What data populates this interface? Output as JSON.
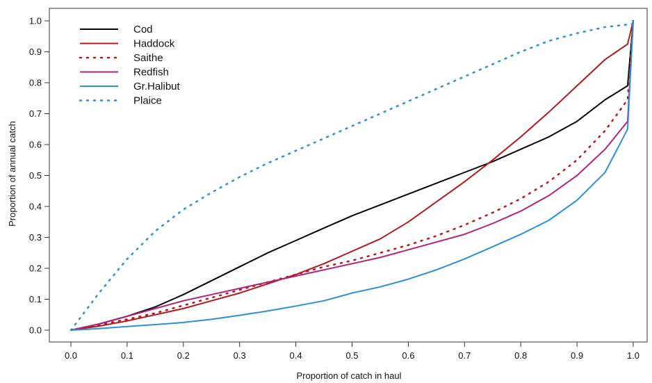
{
  "chart_data": {
    "type": "line",
    "xlabel": "Proportion of catch in haul",
    "ylabel": "Proportion of annual catch",
    "xlim": [
      0,
      1
    ],
    "ylim": [
      0,
      1
    ],
    "xticks": [
      "0.0",
      "0.1",
      "0.2",
      "0.3",
      "0.4",
      "0.5",
      "0.6",
      "0.7",
      "0.8",
      "0.9",
      "1.0"
    ],
    "yticks": [
      "0.0",
      "0.1",
      "0.2",
      "0.3",
      "0.4",
      "0.5",
      "0.6",
      "0.7",
      "0.8",
      "0.9",
      "1.0"
    ],
    "grid": false,
    "legend_position": "top-left",
    "series": [
      {
        "name": "Cod",
        "color": "#000000",
        "style": "solid",
        "x": [
          0.0,
          0.05,
          0.1,
          0.15,
          0.2,
          0.25,
          0.3,
          0.35,
          0.4,
          0.45,
          0.5,
          0.55,
          0.6,
          0.65,
          0.7,
          0.75,
          0.8,
          0.85,
          0.9,
          0.95,
          0.99,
          1.0
        ],
        "y": [
          0.0,
          0.02,
          0.045,
          0.075,
          0.115,
          0.16,
          0.205,
          0.25,
          0.29,
          0.33,
          0.37,
          0.405,
          0.44,
          0.475,
          0.51,
          0.545,
          0.585,
          0.625,
          0.675,
          0.745,
          0.79,
          1.0
        ]
      },
      {
        "name": "Haddock",
        "color": "#b01a1a",
        "style": "solid",
        "x": [
          0.0,
          0.05,
          0.1,
          0.15,
          0.2,
          0.25,
          0.3,
          0.35,
          0.4,
          0.45,
          0.5,
          0.55,
          0.6,
          0.65,
          0.7,
          0.75,
          0.8,
          0.85,
          0.9,
          0.95,
          0.99,
          1.0
        ],
        "y": [
          0.0,
          0.013,
          0.03,
          0.05,
          0.07,
          0.095,
          0.12,
          0.15,
          0.18,
          0.215,
          0.255,
          0.295,
          0.35,
          0.415,
          0.48,
          0.55,
          0.625,
          0.705,
          0.79,
          0.875,
          0.925,
          1.0
        ]
      },
      {
        "name": "Saithe",
        "color": "#b01a1a",
        "style": "dotted",
        "x": [
          0.0,
          0.05,
          0.1,
          0.15,
          0.2,
          0.25,
          0.3,
          0.35,
          0.4,
          0.45,
          0.5,
          0.55,
          0.6,
          0.65,
          0.7,
          0.75,
          0.8,
          0.85,
          0.9,
          0.95,
          0.99,
          1.0
        ],
        "y": [
          0.0,
          0.017,
          0.035,
          0.055,
          0.08,
          0.105,
          0.13,
          0.155,
          0.18,
          0.205,
          0.225,
          0.25,
          0.275,
          0.305,
          0.34,
          0.38,
          0.425,
          0.48,
          0.55,
          0.645,
          0.745,
          1.0
        ]
      },
      {
        "name": "Redfish",
        "color": "#b0237a",
        "style": "solid",
        "x": [
          0.0,
          0.05,
          0.1,
          0.15,
          0.2,
          0.25,
          0.3,
          0.35,
          0.4,
          0.45,
          0.5,
          0.55,
          0.6,
          0.65,
          0.7,
          0.75,
          0.8,
          0.85,
          0.9,
          0.95,
          0.99,
          1.0
        ],
        "y": [
          0.0,
          0.02,
          0.045,
          0.07,
          0.095,
          0.115,
          0.135,
          0.155,
          0.175,
          0.195,
          0.215,
          0.235,
          0.26,
          0.285,
          0.31,
          0.345,
          0.385,
          0.435,
          0.5,
          0.585,
          0.675,
          1.0
        ]
      },
      {
        "name": "Gr.Halibut",
        "color": "#2b8fd8",
        "style": "solid",
        "x": [
          0.0,
          0.05,
          0.1,
          0.15,
          0.2,
          0.25,
          0.3,
          0.35,
          0.4,
          0.45,
          0.5,
          0.55,
          0.6,
          0.65,
          0.7,
          0.75,
          0.8,
          0.85,
          0.9,
          0.95,
          0.99,
          1.0
        ],
        "y": [
          0.0,
          0.005,
          0.012,
          0.018,
          0.025,
          0.035,
          0.048,
          0.062,
          0.078,
          0.095,
          0.12,
          0.14,
          0.165,
          0.195,
          0.23,
          0.27,
          0.31,
          0.355,
          0.42,
          0.51,
          0.65,
          1.0
        ]
      },
      {
        "name": "Plaice",
        "color": "#2b8fd8",
        "style": "dotted",
        "x": [
          0.0,
          0.05,
          0.1,
          0.15,
          0.2,
          0.25,
          0.3,
          0.35,
          0.4,
          0.45,
          0.5,
          0.55,
          0.6,
          0.65,
          0.7,
          0.75,
          0.8,
          0.85,
          0.9,
          0.95,
          1.0
        ],
        "y": [
          0.0,
          0.12,
          0.23,
          0.32,
          0.39,
          0.445,
          0.495,
          0.54,
          0.58,
          0.62,
          0.66,
          0.7,
          0.74,
          0.78,
          0.82,
          0.86,
          0.9,
          0.935,
          0.96,
          0.98,
          0.99
        ]
      }
    ]
  }
}
